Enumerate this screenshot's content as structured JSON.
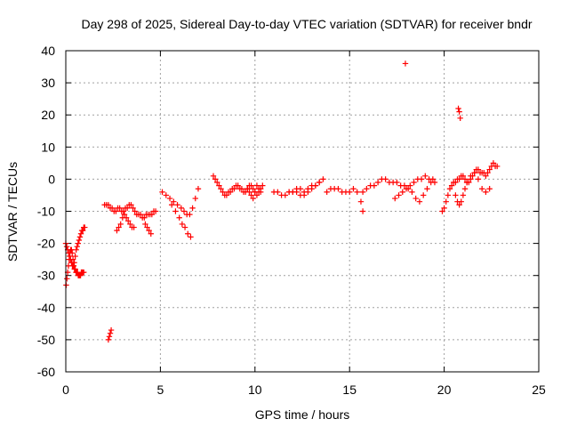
{
  "chart_data": {
    "type": "scatter",
    "title": "Day 298 of 2025, Sidereal Day-to-day VTEC variation (SDTVAR) for receiver bndr",
    "xlabel": "GPS time / hours",
    "ylabel": "SDTVAR / TECUs",
    "xlim": [
      0,
      25
    ],
    "ylim": [
      -60,
      40
    ],
    "xticks": [
      "0",
      "5",
      "10",
      "15",
      "20",
      "25"
    ],
    "yticks": [
      "40",
      "30",
      "20",
      "10",
      "0",
      "-10",
      "-20",
      "-30",
      "-40",
      "-50",
      "-60"
    ],
    "grid": true,
    "marker": "+",
    "series": [
      {
        "name": "SDTVAR",
        "color": "#ff0000",
        "x": [
          0.0,
          0.05,
          0.1,
          0.15,
          0.2,
          0.25,
          0.3,
          0.35,
          0.4,
          0.45,
          0.5,
          0.55,
          0.6,
          0.65,
          0.7,
          0.75,
          0.8,
          0.85,
          0.9,
          0.95,
          1.0,
          0.02,
          0.06,
          0.1,
          0.14,
          0.18,
          0.22,
          0.26,
          0.3,
          0.34,
          0.38,
          0.42,
          0.46,
          0.5,
          0.54,
          0.58,
          0.62,
          0.66,
          0.7,
          0.74,
          0.78,
          0.82,
          0.86,
          0.9,
          0.95,
          2.05,
          2.15,
          2.25,
          2.35,
          2.45,
          2.55,
          2.65,
          2.75,
          2.85,
          2.95,
          3.05,
          3.15,
          3.25,
          3.35,
          3.45,
          3.55,
          3.65,
          3.75,
          3.85,
          3.95,
          4.05,
          4.15,
          4.25,
          4.35,
          4.45,
          4.55,
          4.65,
          4.75,
          2.7,
          2.8,
          2.9,
          3.0,
          3.1,
          3.2,
          3.3,
          3.4,
          3.5,
          3.6,
          4.2,
          4.3,
          4.4,
          4.5,
          2.25,
          2.3,
          2.35,
          2.4,
          5.1,
          5.3,
          5.5,
          5.7,
          5.9,
          6.1,
          6.25,
          6.4,
          6.55,
          6.7,
          6.85,
          7.0,
          5.6,
          5.8,
          6.0,
          6.15,
          6.3,
          6.45,
          6.6,
          7.8,
          7.9,
          8.0,
          8.1,
          8.2,
          8.3,
          8.4,
          8.5,
          8.6,
          8.7,
          8.8,
          8.9,
          9.0,
          9.1,
          9.2,
          9.3,
          9.4,
          9.5,
          9.6,
          9.7,
          9.8,
          9.9,
          10.0,
          10.1,
          10.2,
          10.3,
          10.4,
          9.6,
          9.7,
          9.8,
          9.9,
          10.0,
          10.1,
          10.2,
          10.3,
          11.0,
          11.2,
          11.4,
          11.6,
          11.8,
          12.0,
          12.2,
          12.4,
          12.6,
          12.8,
          13.0,
          13.2,
          13.4,
          13.6,
          11.8,
          12.0,
          12.2,
          12.4,
          12.6,
          12.8,
          13.0,
          13.2,
          13.4,
          13.8,
          14.0,
          14.2,
          14.4,
          14.6,
          14.8,
          15.0,
          15.2,
          15.4,
          15.6,
          15.7,
          15.7,
          15.9,
          16.1,
          16.3,
          16.5,
          16.7,
          16.9,
          17.1,
          17.3,
          17.5,
          17.7,
          17.9,
          18.1,
          18.3,
          18.5,
          18.7,
          18.9,
          19.1,
          19.3,
          19.5,
          17.4,
          17.6,
          17.8,
          18.0,
          18.2,
          18.4,
          18.6,
          18.8,
          19.0,
          19.2,
          19.4,
          17.95,
          19.9,
          20.0,
          20.1,
          20.2,
          20.3,
          20.4,
          20.5,
          20.6,
          20.7,
          20.8,
          20.9,
          21.0,
          21.1,
          21.2,
          21.3,
          21.4,
          21.5,
          21.6,
          21.7,
          21.8,
          21.9,
          22.0,
          22.1,
          22.2,
          22.3,
          22.4,
          22.5,
          22.6,
          22.7,
          22.8,
          20.6,
          20.7,
          20.8,
          20.9,
          21.0,
          21.1,
          21.2,
          21.4,
          21.6,
          21.8,
          22.0,
          22.2,
          22.4,
          20.75,
          20.8,
          20.85
        ],
        "y": [
          -20,
          -21,
          -22,
          -23,
          -24,
          -25,
          -26,
          -27,
          -27,
          -26,
          -24,
          -22,
          -21,
          -20,
          -19,
          -18,
          -17,
          -16,
          -16,
          -15,
          -15,
          -33,
          -31,
          -29,
          -27,
          -25,
          -23,
          -22,
          -22,
          -23,
          -25,
          -27,
          -28,
          -28,
          -29,
          -29,
          -29,
          -30,
          -30,
          -30,
          -30,
          -29,
          -29,
          -29,
          -29,
          -8,
          -8,
          -8,
          -9,
          -9,
          -10,
          -10,
          -9,
          -9,
          -10,
          -10,
          -9,
          -9,
          -8,
          -8,
          -9,
          -10,
          -11,
          -11,
          -11,
          -12,
          -12,
          -11,
          -11,
          -11,
          -11,
          -10,
          -10,
          -16,
          -15,
          -14,
          -12,
          -11,
          -12,
          -13,
          -14,
          -15,
          -15,
          -14,
          -15,
          -16,
          -17,
          -50,
          -49,
          -48,
          -47,
          -4,
          -5,
          -6,
          -7,
          -8,
          -9,
          -10,
          -11,
          -11,
          -9,
          -6,
          -3,
          -8,
          -10,
          -12,
          -14,
          -15,
          -17,
          -18,
          1,
          0,
          -1,
          -2,
          -3,
          -4,
          -5,
          -5,
          -4,
          -4,
          -3,
          -3,
          -2,
          -2,
          -3,
          -3,
          -4,
          -4,
          -3,
          -2,
          -2,
          -3,
          -4,
          -5,
          -4,
          -3,
          -2,
          -3,
          -4,
          -5,
          -6,
          -4,
          -2,
          -3,
          -4,
          -4,
          -4,
          -5,
          -5,
          -4,
          -4,
          -3,
          -3,
          -4,
          -3,
          -2,
          -2,
          -1,
          0,
          -4,
          -4,
          -4,
          -5,
          -5,
          -4,
          -3,
          -2,
          -1,
          -4,
          -3,
          -3,
          -3,
          -4,
          -4,
          -4,
          -3,
          -4,
          -7,
          -10,
          -4,
          -3,
          -2,
          -2,
          -1,
          0,
          0,
          -1,
          -1,
          -1,
          -2,
          -2,
          -3,
          -4,
          -6,
          -7,
          -5,
          -3,
          -1,
          -1,
          -6,
          -5,
          -4,
          -3,
          -2,
          -1,
          0,
          0,
          1,
          0,
          0,
          36,
          -10,
          -9,
          -7,
          -5,
          -3,
          -2,
          -1,
          -1,
          0,
          0,
          1,
          1,
          0,
          -1,
          -1,
          0,
          1,
          2,
          3,
          3,
          2,
          2,
          2,
          1,
          2,
          3,
          4,
          5,
          4,
          4,
          -5,
          -7,
          -8,
          -7,
          -5,
          -3,
          -1,
          1,
          2,
          0,
          -3,
          -4,
          -3,
          22,
          21,
          19
        ]
      }
    ]
  }
}
